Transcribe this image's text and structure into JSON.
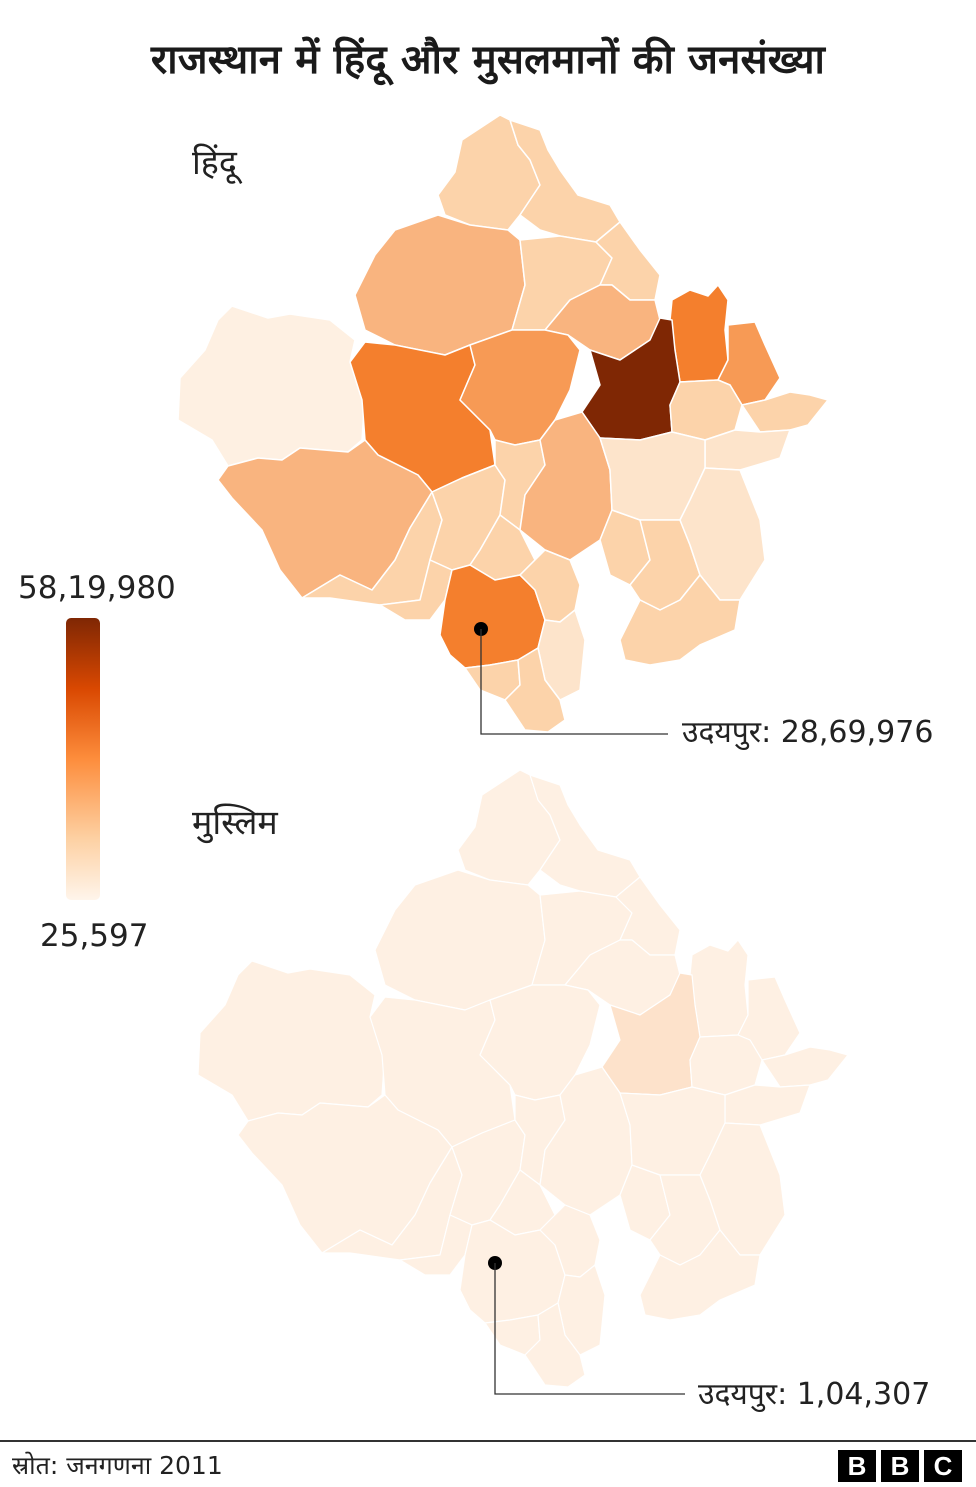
{
  "title": "राजस्थान में हिंदू और मुसलमानों की जनसंख्या",
  "maps": {
    "hindu": {
      "label": "हिंदू",
      "callout": "उदयपुर: 28,69,976"
    },
    "muslim": {
      "label": "मुस्लिम",
      "callout": "उदयपुर: 1,04,307"
    }
  },
  "legend": {
    "max_label": "58,19,980",
    "min_label": "25,597",
    "color_high": "#7f2704",
    "color_low": "#fff5eb"
  },
  "colors": {
    "dark": "#7f2704",
    "strong": "#f47f2d",
    "mid": "#f79a55",
    "medium_light": "#f9b47f",
    "light": "#fcd3aa",
    "very_light": "#fde4cb",
    "lightest": "#fef0e2",
    "muslim_base": "#fef0e3",
    "muslim_highlight": "#fde2cb",
    "border": "#ffffff"
  },
  "footer": {
    "source": "स्रोत: जनगणना 2011",
    "brand_letters": [
      "B",
      "B",
      "C"
    ]
  }
}
